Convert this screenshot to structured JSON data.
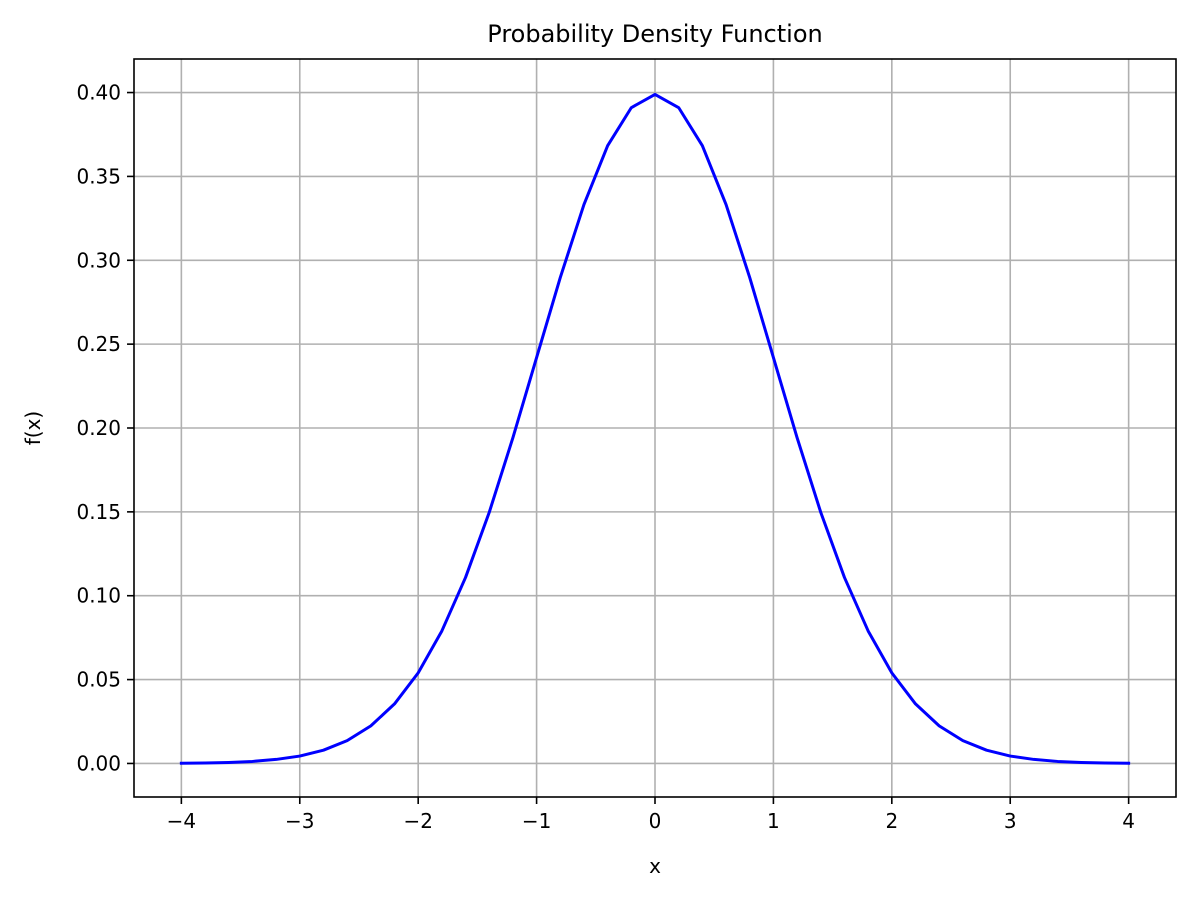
{
  "chart_data": {
    "type": "line",
    "title": "Probability Density Function",
    "xlabel": "x",
    "ylabel": "f(x)",
    "xlim": [
      -4.4,
      4.4
    ],
    "ylim": [
      -0.02,
      0.42
    ],
    "xticks": [
      -4,
      -3,
      -2,
      -1,
      0,
      1,
      2,
      3,
      4
    ],
    "xtick_labels": [
      "−4",
      "−3",
      "−2",
      "−1",
      "0",
      "1",
      "2",
      "3",
      "4"
    ],
    "yticks": [
      0.0,
      0.05,
      0.1,
      0.15,
      0.2,
      0.25,
      0.3,
      0.35,
      0.4
    ],
    "ytick_labels": [
      "0.00",
      "0.05",
      "0.10",
      "0.15",
      "0.20",
      "0.25",
      "0.30",
      "0.35",
      "0.40"
    ],
    "grid": true,
    "legend": "none",
    "series": [
      {
        "color": "#0000ff",
        "x": [
          -4.0,
          -3.8,
          -3.6,
          -3.4,
          -3.2,
          -3.0,
          -2.8,
          -2.6,
          -2.4,
          -2.2,
          -2.0,
          -1.8,
          -1.6,
          -1.4,
          -1.2,
          -1.0,
          -0.8,
          -0.6,
          -0.4,
          -0.2,
          0.0,
          0.2,
          0.4,
          0.6,
          0.8,
          1.0,
          1.2,
          1.4,
          1.6,
          1.8,
          2.0,
          2.2,
          2.4,
          2.6,
          2.8,
          3.0,
          3.2,
          3.4,
          3.6,
          3.8,
          4.0
        ],
        "y": [
          0.0001,
          0.0003,
          0.0006,
          0.0012,
          0.0024,
          0.0044,
          0.0079,
          0.0136,
          0.0224,
          0.0355,
          0.054,
          0.079,
          0.1109,
          0.1497,
          0.1942,
          0.242,
          0.2897,
          0.3332,
          0.3683,
          0.391,
          0.3989,
          0.391,
          0.3683,
          0.3332,
          0.2897,
          0.242,
          0.1942,
          0.1497,
          0.1109,
          0.079,
          0.054,
          0.0355,
          0.0224,
          0.0136,
          0.0079,
          0.0044,
          0.0024,
          0.0012,
          0.0006,
          0.0003,
          0.0001
        ]
      }
    ]
  },
  "colors": {
    "line": "#0000ff",
    "grid": "#b0b0b0",
    "axes": "#000000"
  }
}
